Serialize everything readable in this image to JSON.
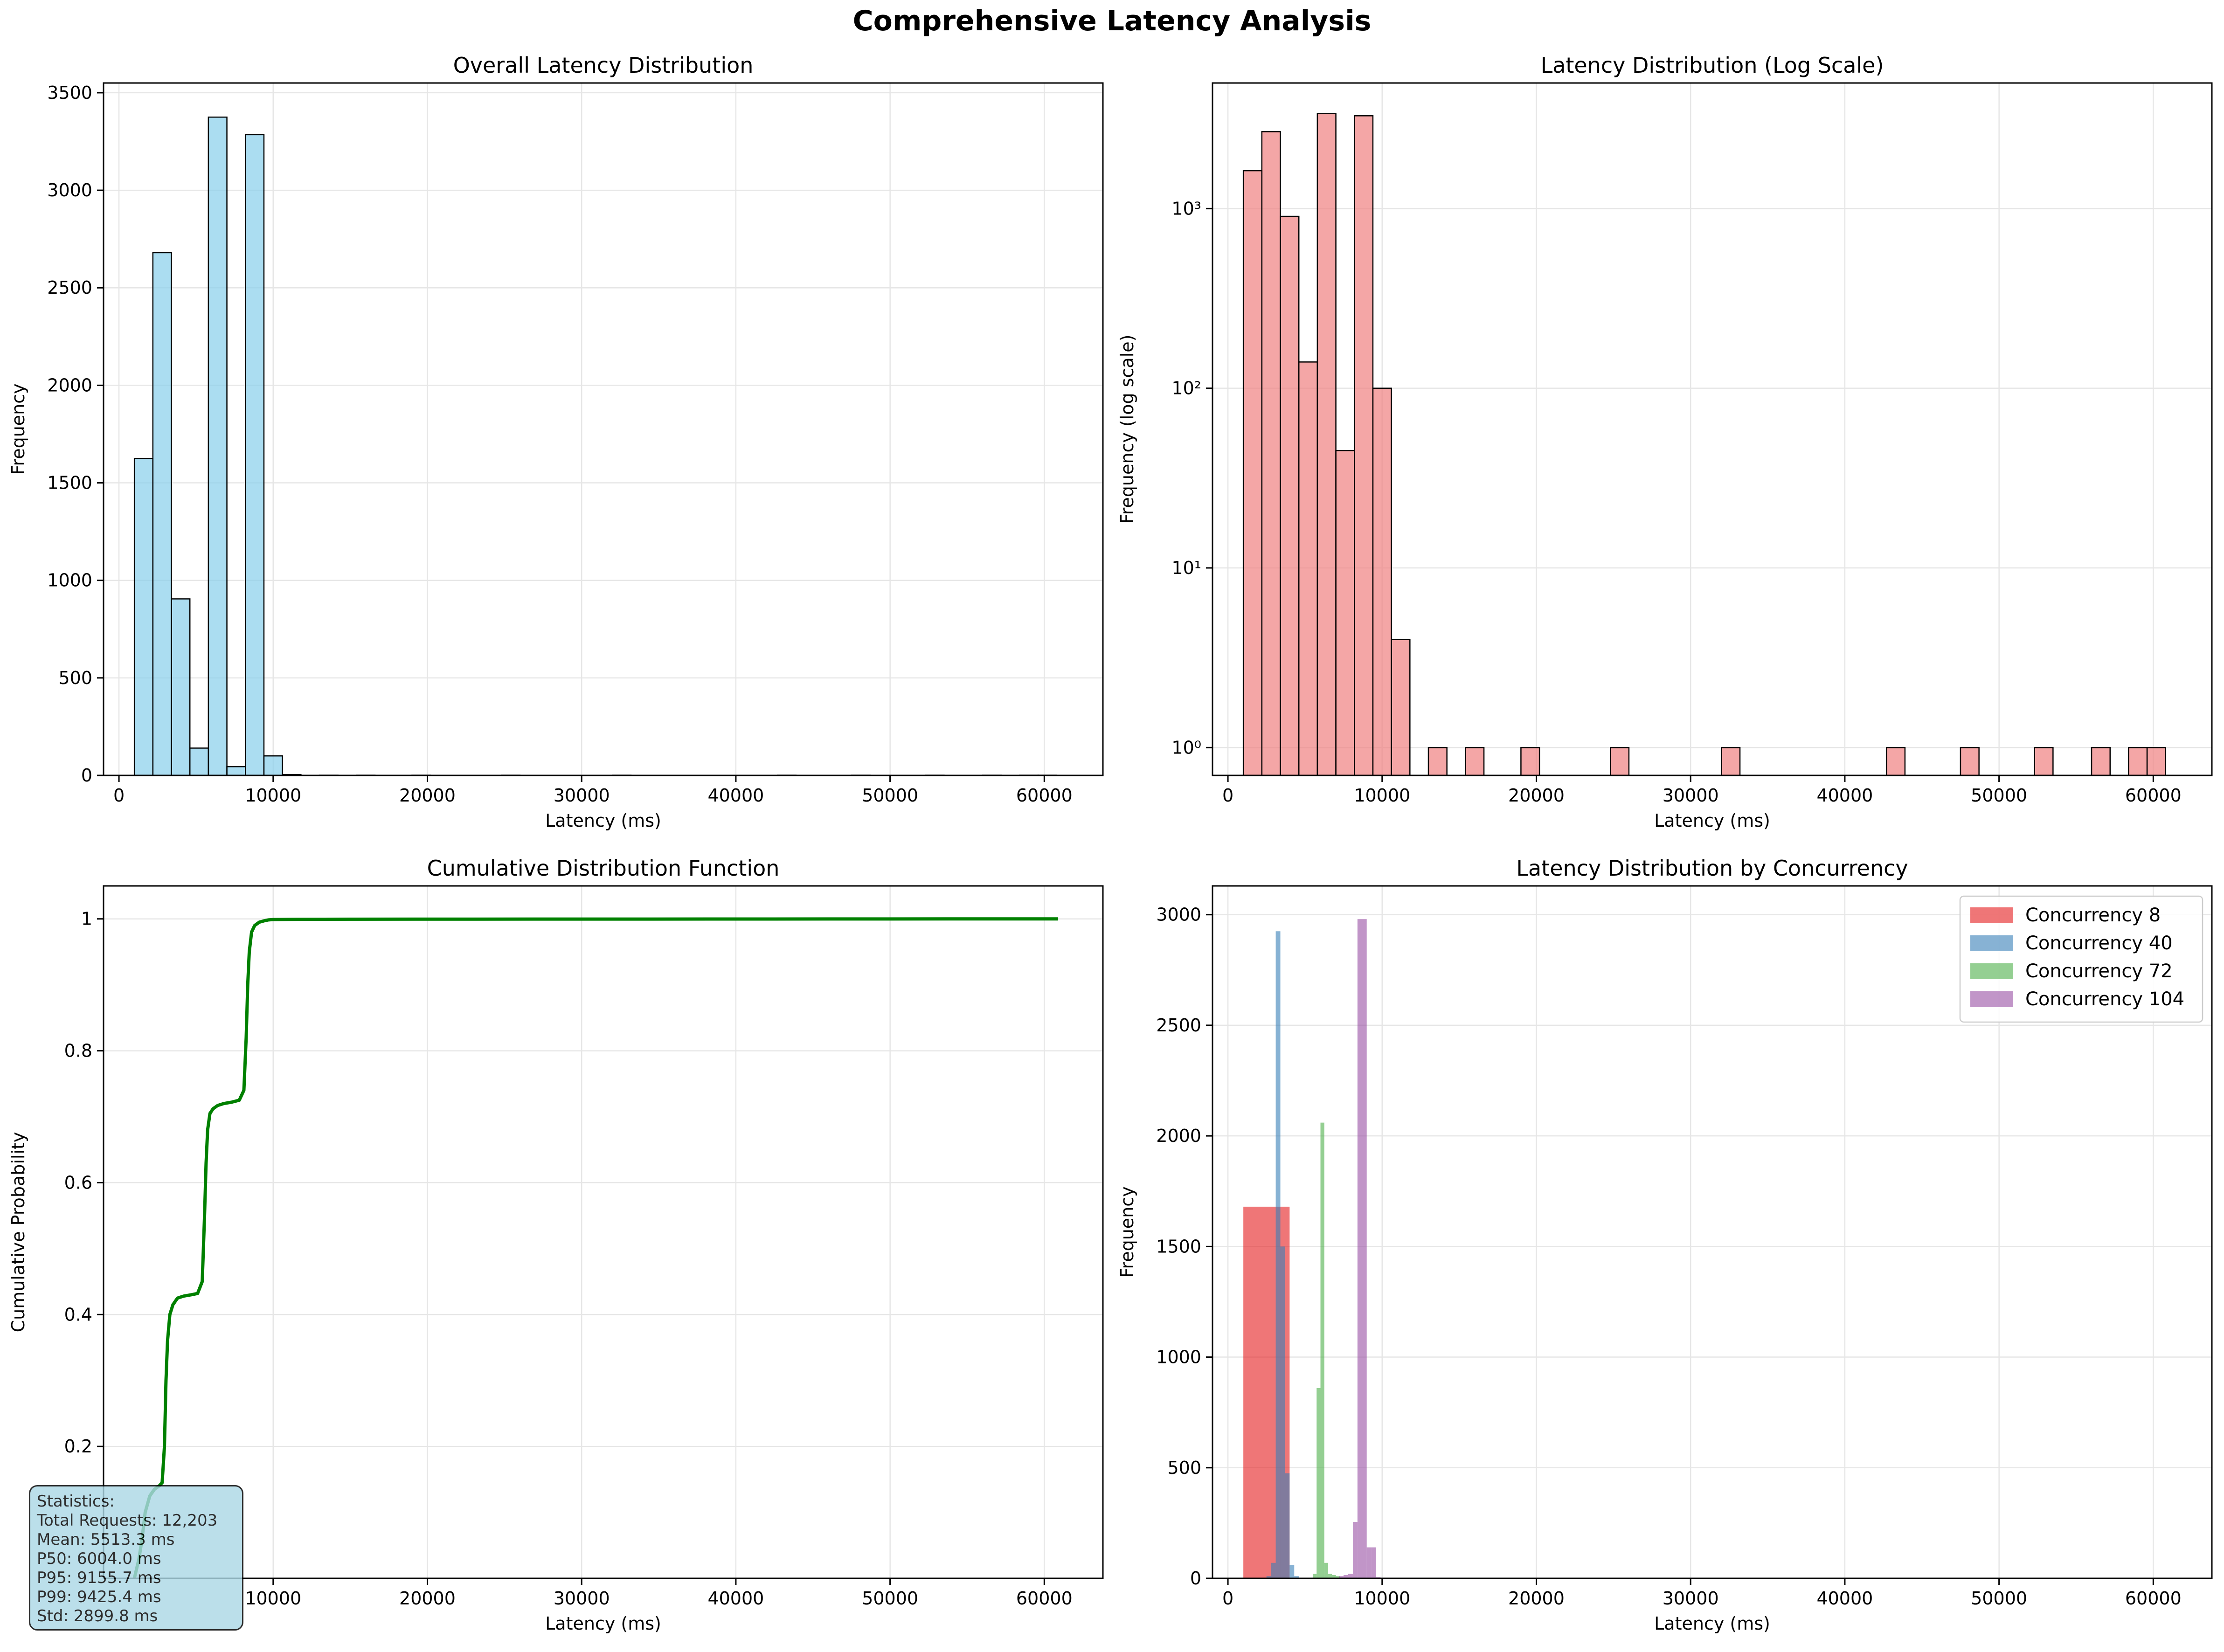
{
  "figure": {
    "title": "Comprehensive Latency Analysis"
  },
  "chart_data": [
    {
      "type": "histogram",
      "title": "Overall Latency Distribution",
      "xlabel": "Latency (ms)",
      "ylabel": "Frequency",
      "xlim": [
        -1000,
        63800
      ],
      "ylim": [
        0,
        3550
      ],
      "xticks": [
        0,
        10000,
        20000,
        30000,
        40000,
        50000,
        60000
      ],
      "yticks": [
        0,
        500,
        1000,
        1500,
        2000,
        2500,
        3000,
        3500
      ],
      "grid": true,
      "bar_color": "#87ceeb",
      "bin_width": 1200,
      "bins": [
        {
          "x0": 1000,
          "x1": 2200,
          "count": 1625
        },
        {
          "x0": 2200,
          "x1": 3400,
          "count": 2680
        },
        {
          "x0": 3400,
          "x1": 4600,
          "count": 905
        },
        {
          "x0": 4600,
          "x1": 5800,
          "count": 140
        },
        {
          "x0": 5800,
          "x1": 7000,
          "count": 3375
        },
        {
          "x0": 7000,
          "x1": 8200,
          "count": 45
        },
        {
          "x0": 8200,
          "x1": 9400,
          "count": 3285
        },
        {
          "x0": 9400,
          "x1": 10600,
          "count": 100
        },
        {
          "x0": 10600,
          "x1": 11800,
          "count": 4
        },
        {
          "x0": 13000,
          "x1": 14200,
          "count": 1
        },
        {
          "x0": 15400,
          "x1": 16600,
          "count": 1
        },
        {
          "x0": 19000,
          "x1": 20200,
          "count": 1
        },
        {
          "x0": 24800,
          "x1": 26000,
          "count": 1
        },
        {
          "x0": 32000,
          "x1": 33200,
          "count": 1
        },
        {
          "x0": 42700,
          "x1": 43900,
          "count": 1
        },
        {
          "x0": 47500,
          "x1": 48700,
          "count": 1
        },
        {
          "x0": 52300,
          "x1": 53500,
          "count": 1
        },
        {
          "x0": 56000,
          "x1": 57200,
          "count": 1
        },
        {
          "x0": 58400,
          "x1": 59600,
          "count": 1
        },
        {
          "x0": 59600,
          "x1": 60800,
          "count": 1
        }
      ]
    },
    {
      "type": "histogram",
      "title": "Latency Distribution (Log Scale)",
      "xlabel": "Latency (ms)",
      "ylabel": "Frequency (log scale)",
      "yscale": "log",
      "xlim": [
        -1000,
        63800
      ],
      "ylim": [
        0.7,
        5000
      ],
      "xticks": [
        0,
        10000,
        20000,
        30000,
        40000,
        50000,
        60000
      ],
      "yticks": [
        1,
        10,
        100,
        1000
      ],
      "ytick_labels": [
        "10⁰",
        "10¹",
        "10²",
        "10³"
      ],
      "grid": true,
      "bar_color": "#f08080",
      "bins": [
        {
          "x0": 1000,
          "x1": 2200,
          "count": 1625
        },
        {
          "x0": 2200,
          "x1": 3400,
          "count": 2680
        },
        {
          "x0": 3400,
          "x1": 4600,
          "count": 905
        },
        {
          "x0": 4600,
          "x1": 5800,
          "count": 140
        },
        {
          "x0": 5800,
          "x1": 7000,
          "count": 3375
        },
        {
          "x0": 7000,
          "x1": 8200,
          "count": 45
        },
        {
          "x0": 8200,
          "x1": 9400,
          "count": 3285
        },
        {
          "x0": 9400,
          "x1": 10600,
          "count": 100
        },
        {
          "x0": 10600,
          "x1": 11800,
          "count": 4
        },
        {
          "x0": 13000,
          "x1": 14200,
          "count": 1
        },
        {
          "x0": 15400,
          "x1": 16600,
          "count": 1
        },
        {
          "x0": 19000,
          "x1": 20200,
          "count": 1
        },
        {
          "x0": 24800,
          "x1": 26000,
          "count": 1
        },
        {
          "x0": 32000,
          "x1": 33200,
          "count": 1
        },
        {
          "x0": 42700,
          "x1": 43900,
          "count": 1
        },
        {
          "x0": 47500,
          "x1": 48700,
          "count": 1
        },
        {
          "x0": 52300,
          "x1": 53500,
          "count": 1
        },
        {
          "x0": 56000,
          "x1": 57200,
          "count": 1
        },
        {
          "x0": 58400,
          "x1": 59600,
          "count": 1
        },
        {
          "x0": 59600,
          "x1": 60800,
          "count": 1
        }
      ]
    },
    {
      "type": "line",
      "title": "Cumulative Distribution Function",
      "xlabel": "Latency (ms)",
      "ylabel": "Cumulative Probability",
      "xlim": [
        -1000,
        63800
      ],
      "ylim": [
        0,
        1.05
      ],
      "xticks": [
        10000,
        20000,
        30000,
        40000,
        50000,
        60000
      ],
      "yticks": [
        0.2,
        0.4,
        0.6,
        0.8,
        1.0
      ],
      "grid": true,
      "line_color": "#008000",
      "series": [
        {
          "x": [
            1000,
            1300,
            1500,
            1700,
            2000,
            2300,
            2600,
            2800,
            2950,
            3050,
            3150,
            3300,
            3500,
            3800,
            4200,
            4700,
            5100,
            5400,
            5550,
            5650,
            5750,
            5900,
            6100,
            6400,
            6800,
            7300,
            7800,
            8100,
            8250,
            8350,
            8450,
            8600,
            8800,
            9100,
            9400,
            9700,
            10000,
            11000,
            15000,
            20000,
            30000,
            40000,
            50000,
            60900
          ],
          "y": [
            0.0,
            0.03,
            0.06,
            0.1,
            0.125,
            0.135,
            0.14,
            0.145,
            0.2,
            0.3,
            0.36,
            0.4,
            0.415,
            0.425,
            0.428,
            0.43,
            0.432,
            0.45,
            0.55,
            0.63,
            0.68,
            0.705,
            0.712,
            0.717,
            0.72,
            0.722,
            0.725,
            0.74,
            0.82,
            0.9,
            0.95,
            0.98,
            0.99,
            0.995,
            0.997,
            0.9985,
            0.999,
            0.9993,
            0.9995,
            0.9996,
            0.9997,
            0.9998,
            0.9999,
            1.0
          ]
        }
      ],
      "annotation": {
        "lines": [
          "Statistics:",
          "Total Requests: 12,203",
          "Mean: 5513.3 ms",
          "P50: 6004.0 ms",
          "P95: 9155.7 ms",
          "P99: 9425.4 ms",
          "Std: 2899.8 ms"
        ],
        "placement": "bottom-left"
      }
    },
    {
      "type": "histogram",
      "title": "Latency Distribution by Concurrency",
      "xlabel": "Latency (ms)",
      "ylabel": "Frequency",
      "xlim": [
        -1000,
        63800
      ],
      "ylim": [
        0,
        3130
      ],
      "xticks": [
        0,
        10000,
        20000,
        30000,
        40000,
        50000,
        60000
      ],
      "yticks": [
        0,
        500,
        1000,
        1500,
        2000,
        2500,
        3000
      ],
      "grid": true,
      "legend_placement": "top-right",
      "series": [
        {
          "name": "Concurrency 8",
          "color": "#e41a1c",
          "bins": [
            {
              "x0": 1000,
              "x1": 4000,
              "count": 1680
            }
          ]
        },
        {
          "name": "Concurrency 40",
          "color": "#377eb8",
          "bins": [
            {
              "x0": 2500,
              "x1": 2800,
              "count": 10
            },
            {
              "x0": 2800,
              "x1": 3100,
              "count": 70
            },
            {
              "x0": 3100,
              "x1": 3400,
              "count": 2925
            },
            {
              "x0": 3400,
              "x1": 3700,
              "count": 1500
            },
            {
              "x0": 3700,
              "x1": 4000,
              "count": 475
            },
            {
              "x0": 4000,
              "x1": 4300,
              "count": 60
            },
            {
              "x0": 4300,
              "x1": 4600,
              "count": 10
            }
          ]
        },
        {
          "name": "Concurrency 72",
          "color": "#4daf4a",
          "bins": [
            {
              "x0": 5500,
              "x1": 5750,
              "count": 20
            },
            {
              "x0": 5750,
              "x1": 6000,
              "count": 860
            },
            {
              "x0": 6000,
              "x1": 6250,
              "count": 2060
            },
            {
              "x0": 6250,
              "x1": 6500,
              "count": 70
            },
            {
              "x0": 6500,
              "x1": 6750,
              "count": 20
            },
            {
              "x0": 6750,
              "x1": 7000,
              "count": 15
            },
            {
              "x0": 7000,
              "x1": 7250,
              "count": 10
            }
          ]
        },
        {
          "name": "Concurrency 104",
          "color": "#984ea3",
          "bins": [
            {
              "x0": 7200,
              "x1": 7500,
              "count": 10
            },
            {
              "x0": 7500,
              "x1": 7800,
              "count": 15
            },
            {
              "x0": 7800,
              "x1": 8100,
              "count": 20
            },
            {
              "x0": 8100,
              "x1": 8400,
              "count": 255
            },
            {
              "x0": 8400,
              "x1": 8700,
              "count": 2980
            },
            {
              "x0": 8700,
              "x1": 9000,
              "count": 2980
            },
            {
              "x0": 9000,
              "x1": 9300,
              "count": 140
            },
            {
              "x0": 9300,
              "x1": 9600,
              "count": 140
            },
            {
              "x0": 9600,
              "x1": 9900,
              "count": 5
            }
          ]
        }
      ]
    }
  ]
}
